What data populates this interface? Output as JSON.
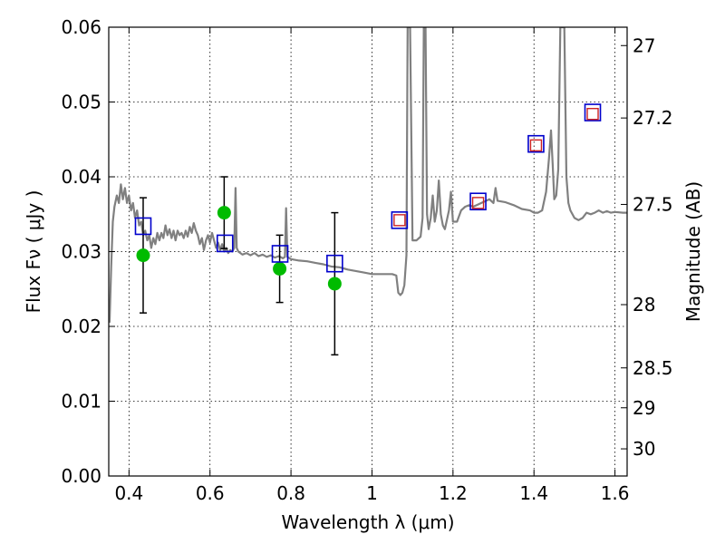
{
  "chart_data": {
    "type": "scatter",
    "title": "",
    "xlabel": "Wavelength  λ (μm)",
    "ylabel": "Flux  Fν  ( μJy )",
    "y2label": "Magnitude (AB)",
    "xlim": [
      0.35,
      1.63
    ],
    "ylim": [
      0,
      0.06
    ],
    "grid": true,
    "x_ticks": [
      0.4,
      0.6,
      0.8,
      1.0,
      1.2,
      1.4,
      1.6
    ],
    "x_tick_labels": [
      "0.4",
      "0.6",
      "0.8",
      "1",
      "1.2",
      "1.4",
      "1.6"
    ],
    "y_ticks": [
      0,
      0.01,
      0.02,
      0.03,
      0.04,
      0.05,
      0.06
    ],
    "y_tick_labels": [
      "0.00",
      "0.01",
      "0.02",
      "0.03",
      "0.04",
      "0.05",
      "0.06"
    ],
    "y2_ticks": [
      27,
      27.2,
      27.5,
      28,
      28.5,
      29,
      30
    ],
    "y2_tick_labels": [
      "27",
      "27.2",
      "27.5",
      "28",
      "28.5",
      "29",
      "30"
    ],
    "colors": {
      "model": "#808080",
      "observed": "#00bb00",
      "error_bar": "#000000",
      "model_phot_square": "#0000cc",
      "inner_square": "#cc2222"
    },
    "series": [
      {
        "kind": "line",
        "points": [
          [
            0.352,
            0.0205
          ],
          [
            0.356,
            0.028
          ],
          [
            0.36,
            0.034
          ],
          [
            0.364,
            0.036
          ],
          [
            0.37,
            0.0375
          ],
          [
            0.375,
            0.0365
          ],
          [
            0.38,
            0.039
          ],
          [
            0.385,
            0.037
          ],
          [
            0.39,
            0.0385
          ],
          [
            0.395,
            0.0365
          ],
          [
            0.4,
            0.0375
          ],
          [
            0.405,
            0.0355
          ],
          [
            0.41,
            0.0365
          ],
          [
            0.415,
            0.0345
          ],
          [
            0.42,
            0.0355
          ],
          [
            0.425,
            0.0335
          ],
          [
            0.43,
            0.034
          ],
          [
            0.435,
            0.0322
          ],
          [
            0.44,
            0.0328
          ],
          [
            0.445,
            0.0315
          ],
          [
            0.45,
            0.0322
          ],
          [
            0.455,
            0.0305
          ],
          [
            0.46,
            0.0318
          ],
          [
            0.465,
            0.031
          ],
          [
            0.47,
            0.0325
          ],
          [
            0.475,
            0.0315
          ],
          [
            0.48,
            0.0325
          ],
          [
            0.485,
            0.0318
          ],
          [
            0.49,
            0.0335
          ],
          [
            0.495,
            0.0322
          ],
          [
            0.5,
            0.033
          ],
          [
            0.505,
            0.0318
          ],
          [
            0.51,
            0.0328
          ],
          [
            0.515,
            0.0315
          ],
          [
            0.52,
            0.0328
          ],
          [
            0.525,
            0.0322
          ],
          [
            0.53,
            0.0325
          ],
          [
            0.535,
            0.0318
          ],
          [
            0.54,
            0.0328
          ],
          [
            0.545,
            0.032
          ],
          [
            0.55,
            0.0333
          ],
          [
            0.555,
            0.0325
          ],
          [
            0.56,
            0.0338
          ],
          [
            0.565,
            0.0328
          ],
          [
            0.57,
            0.0322
          ],
          [
            0.575,
            0.031
          ],
          [
            0.58,
            0.0318
          ],
          [
            0.585,
            0.0302
          ],
          [
            0.59,
            0.0315
          ],
          [
            0.595,
            0.0322
          ],
          [
            0.6,
            0.0312
          ],
          [
            0.605,
            0.0325
          ],
          [
            0.61,
            0.0315
          ],
          [
            0.615,
            0.0305
          ],
          [
            0.62,
            0.0312
          ],
          [
            0.625,
            0.0302
          ],
          [
            0.63,
            0.031
          ],
          [
            0.635,
            0.03
          ],
          [
            0.64,
            0.0305
          ],
          [
            0.645,
            0.0298
          ],
          [
            0.65,
            0.0302
          ],
          [
            0.655,
            0.03
          ],
          [
            0.66,
            0.0305
          ],
          [
            0.663,
            0.0385
          ],
          [
            0.666,
            0.0305
          ],
          [
            0.67,
            0.03
          ],
          [
            0.68,
            0.0296
          ],
          [
            0.69,
            0.0298
          ],
          [
            0.7,
            0.0295
          ],
          [
            0.71,
            0.0298
          ],
          [
            0.72,
            0.0294
          ],
          [
            0.73,
            0.0296
          ],
          [
            0.74,
            0.0293
          ],
          [
            0.75,
            0.0295
          ],
          [
            0.76,
            0.0292
          ],
          [
            0.77,
            0.0294
          ],
          [
            0.78,
            0.0291
          ],
          [
            0.785,
            0.0293
          ],
          [
            0.788,
            0.0358
          ],
          [
            0.791,
            0.0293
          ],
          [
            0.8,
            0.029
          ],
          [
            0.82,
            0.0288
          ],
          [
            0.84,
            0.0287
          ],
          [
            0.86,
            0.0285
          ],
          [
            0.88,
            0.0283
          ],
          [
            0.9,
            0.028
          ],
          [
            0.92,
            0.0279
          ],
          [
            0.94,
            0.0276
          ],
          [
            0.96,
            0.0274
          ],
          [
            0.98,
            0.0272
          ],
          [
            1.0,
            0.027
          ],
          [
            1.02,
            0.027
          ],
          [
            1.04,
            0.027
          ],
          [
            1.05,
            0.027
          ],
          [
            1.06,
            0.0268
          ],
          [
            1.065,
            0.0245
          ],
          [
            1.07,
            0.0242
          ],
          [
            1.075,
            0.0245
          ],
          [
            1.08,
            0.0255
          ],
          [
            1.085,
            0.0295
          ],
          [
            1.088,
            0.06
          ],
          [
            1.094,
            0.06
          ],
          [
            1.1,
            0.0315
          ],
          [
            1.11,
            0.0315
          ],
          [
            1.12,
            0.032
          ],
          [
            1.125,
            0.0345
          ],
          [
            1.128,
            0.061
          ],
          [
            1.132,
            0.061
          ],
          [
            1.136,
            0.035
          ],
          [
            1.14,
            0.033
          ],
          [
            1.145,
            0.0345
          ],
          [
            1.15,
            0.0375
          ],
          [
            1.155,
            0.034
          ],
          [
            1.16,
            0.0355
          ],
          [
            1.165,
            0.0395
          ],
          [
            1.17,
            0.035
          ],
          [
            1.175,
            0.0335
          ],
          [
            1.18,
            0.033
          ],
          [
            1.19,
            0.0355
          ],
          [
            1.195,
            0.038
          ],
          [
            1.2,
            0.034
          ],
          [
            1.21,
            0.034
          ],
          [
            1.22,
            0.0355
          ],
          [
            1.23,
            0.036
          ],
          [
            1.24,
            0.0362
          ],
          [
            1.25,
            0.036
          ],
          [
            1.27,
            0.0365
          ],
          [
            1.29,
            0.037
          ],
          [
            1.3,
            0.0365
          ],
          [
            1.305,
            0.0385
          ],
          [
            1.31,
            0.0368
          ],
          [
            1.33,
            0.0366
          ],
          [
            1.35,
            0.0362
          ],
          [
            1.37,
            0.0357
          ],
          [
            1.39,
            0.0355
          ],
          [
            1.4,
            0.0352
          ],
          [
            1.41,
            0.0352
          ],
          [
            1.42,
            0.0355
          ],
          [
            1.43,
            0.038
          ],
          [
            1.437,
            0.0425
          ],
          [
            1.442,
            0.0462
          ],
          [
            1.446,
            0.0418
          ],
          [
            1.45,
            0.037
          ],
          [
            1.455,
            0.0375
          ],
          [
            1.46,
            0.041
          ],
          [
            1.465,
            0.06
          ],
          [
            1.475,
            0.06
          ],
          [
            1.48,
            0.04
          ],
          [
            1.485,
            0.0365
          ],
          [
            1.49,
            0.0355
          ],
          [
            1.5,
            0.0345
          ],
          [
            1.51,
            0.0342
          ],
          [
            1.52,
            0.0345
          ],
          [
            1.53,
            0.0352
          ],
          [
            1.54,
            0.035
          ],
          [
            1.55,
            0.0352
          ],
          [
            1.56,
            0.0355
          ],
          [
            1.57,
            0.0352
          ],
          [
            1.58,
            0.0354
          ],
          [
            1.59,
            0.0352
          ],
          [
            1.6,
            0.0353
          ],
          [
            1.62,
            0.0352
          ],
          [
            1.63,
            0.0352
          ]
        ]
      },
      {
        "kind": "observed",
        "points": [
          {
            "x": 0.435,
            "y": 0.0295,
            "err": 0.0077
          },
          {
            "x": 0.635,
            "y": 0.0352,
            "err": 0.0048
          },
          {
            "x": 0.772,
            "y": 0.0277,
            "err": 0.0045
          },
          {
            "x": 0.908,
            "y": 0.0257,
            "err": 0.0095
          }
        ]
      },
      {
        "kind": "model_photometry",
        "points": [
          {
            "x": 0.435,
            "y": 0.0334
          },
          {
            "x": 0.637,
            "y": 0.0311
          },
          {
            "x": 0.773,
            "y": 0.0297
          },
          {
            "x": 0.908,
            "y": 0.0284
          },
          {
            "x": 1.068,
            "y": 0.0342
          },
          {
            "x": 1.262,
            "y": 0.0367
          },
          {
            "x": 1.405,
            "y": 0.0444
          },
          {
            "x": 1.545,
            "y": 0.0486
          }
        ]
      },
      {
        "kind": "model_photometry_inner",
        "points": [
          {
            "x": 1.068,
            "y": 0.0342
          },
          {
            "x": 1.262,
            "y": 0.0365
          },
          {
            "x": 1.405,
            "y": 0.0442
          },
          {
            "x": 1.545,
            "y": 0.0484
          }
        ]
      }
    ]
  }
}
